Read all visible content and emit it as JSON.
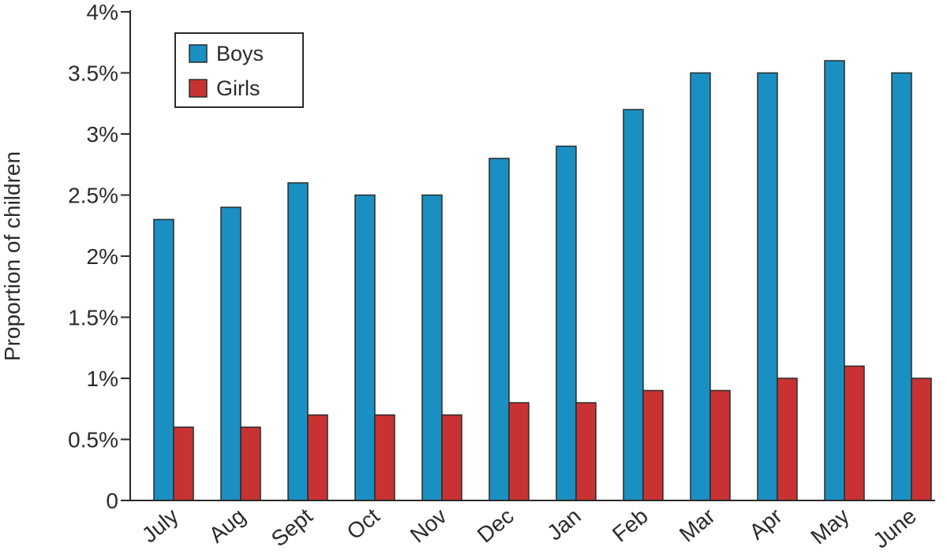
{
  "chart_data": {
    "type": "bar",
    "title": "",
    "xlabel": "",
    "ylabel": "Proportion of children",
    "ylim": [
      0,
      4
    ],
    "yticks": [
      0,
      0.5,
      1,
      1.5,
      2,
      2.5,
      3,
      3.5,
      4
    ],
    "ytick_labels": [
      "0",
      "0.5%",
      "1%",
      "1.5%",
      "2%",
      "2.5%",
      "3%",
      "3.5%",
      "4%"
    ],
    "grid": false,
    "legend_position": "top-left",
    "categories": [
      "July",
      "Aug",
      "Sept",
      "Oct",
      "Nov",
      "Dec",
      "Jan",
      "Feb",
      "Mar",
      "Apr",
      "May",
      "June"
    ],
    "series": [
      {
        "name": "Boys",
        "color": "#1a8fc2",
        "values": [
          2.3,
          2.4,
          2.6,
          2.5,
          2.5,
          2.8,
          2.9,
          3.2,
          3.5,
          3.5,
          3.6,
          3.5
        ]
      },
      {
        "name": "Girls",
        "color": "#c93232",
        "values": [
          0.6,
          0.6,
          0.7,
          0.7,
          0.7,
          0.8,
          0.8,
          0.9,
          0.9,
          1.0,
          1.1,
          1.0
        ]
      }
    ]
  }
}
